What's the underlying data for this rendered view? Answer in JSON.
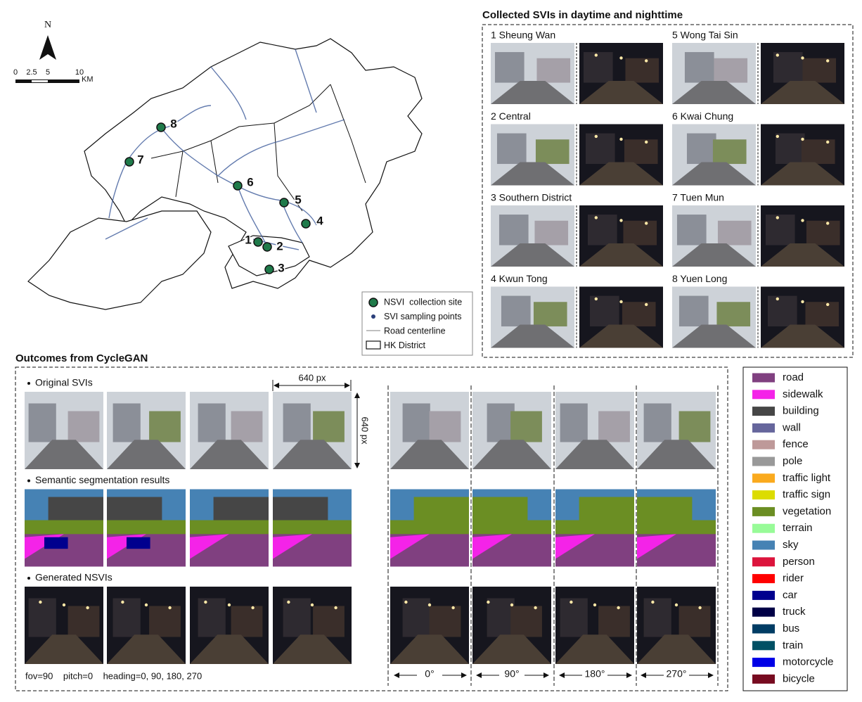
{
  "map": {
    "north": "N",
    "scale_labels": [
      "0",
      "2.5",
      "5",
      "10"
    ],
    "scale_unit": "KM",
    "sites": [
      "1",
      "2",
      "3",
      "4",
      "5",
      "6",
      "7",
      "8"
    ],
    "legend": [
      "NSVI  collection site",
      "SVI sampling points",
      "Road centerline",
      "HK District"
    ]
  },
  "svis": {
    "title": "Collected SVIs in daytime and nighttime",
    "sites": [
      "1 Sheung Wan",
      "2 Central",
      "3 Southern District",
      "4 Kwun Tong",
      "5 Wong Tai Sin",
      "6 Kwai Chung",
      "7 Tuen Mun",
      "8 Yuen Long"
    ]
  },
  "cyclegan": {
    "title": "Outcomes from CycleGAN",
    "rows": [
      "Original SVIs",
      "Semantic segmentation results",
      "Generated NSVIs"
    ],
    "width_label": "640 px",
    "height_label": "640 px",
    "params": "fov=90    pitch=0    heading=0, 90, 180, 270",
    "headings": [
      "0°",
      "90°",
      "180°",
      "270°"
    ]
  },
  "classes": [
    {
      "name": "road",
      "color": "#804080"
    },
    {
      "name": "sidewalk",
      "color": "#f423e8"
    },
    {
      "name": "building",
      "color": "#464646"
    },
    {
      "name": "wall",
      "color": "#66669c"
    },
    {
      "name": "fence",
      "color": "#be9999"
    },
    {
      "name": "pole",
      "color": "#999999"
    },
    {
      "name": "traffic light",
      "color": "#faaa1e"
    },
    {
      "name": "traffic sign",
      "color": "#dcdc00"
    },
    {
      "name": "vegetation",
      "color": "#6b8e23"
    },
    {
      "name": "terrain",
      "color": "#98fb98"
    },
    {
      "name": "sky",
      "color": "#4682b4"
    },
    {
      "name": "person",
      "color": "#dc143c"
    },
    {
      "name": "rider",
      "color": "#ff0000"
    },
    {
      "name": "car",
      "color": "#00008e"
    },
    {
      "name": "truck",
      "color": "#000046"
    },
    {
      "name": "bus",
      "color": "#003c64"
    },
    {
      "name": "train",
      "color": "#005064"
    },
    {
      "name": "motorcycle",
      "color": "#0000e6"
    },
    {
      "name": "bicycle",
      "color": "#770b20"
    }
  ]
}
